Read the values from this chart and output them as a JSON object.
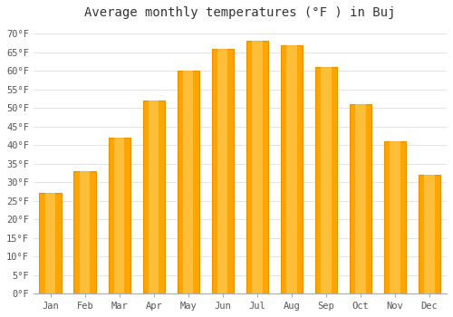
{
  "title": "Average monthly temperatures (°F ) in Buj",
  "months": [
    "Jan",
    "Feb",
    "Mar",
    "Apr",
    "May",
    "Jun",
    "Jul",
    "Aug",
    "Sep",
    "Oct",
    "Nov",
    "Dec"
  ],
  "values": [
    27,
    33,
    42,
    52,
    60,
    66,
    68,
    67,
    61,
    51,
    41,
    32
  ],
  "bar_color_main": "#FFA500",
  "bar_color_light": "#FFD060",
  "bar_edge_color": "#E89000",
  "background_color": "#FFFFFF",
  "grid_color": "#DDDDDD",
  "text_color": "#555555",
  "ylim": [
    0,
    72
  ],
  "yticks": [
    0,
    5,
    10,
    15,
    20,
    25,
    30,
    35,
    40,
    45,
    50,
    55,
    60,
    65,
    70
  ],
  "title_fontsize": 10,
  "tick_fontsize": 7.5,
  "figsize": [
    5.0,
    3.5
  ],
  "dpi": 100
}
